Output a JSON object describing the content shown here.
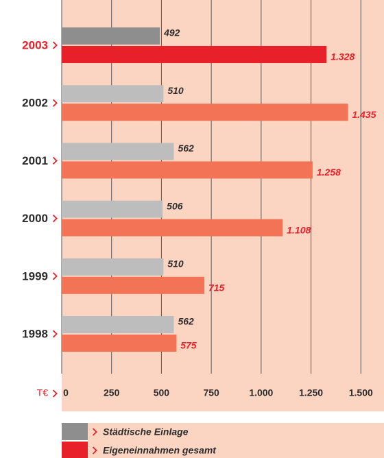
{
  "chart_data": {
    "type": "bar",
    "orientation": "horizontal",
    "categories": [
      "2003",
      "2002",
      "2001",
      "2000",
      "1999",
      "1998"
    ],
    "category_colors": [
      "#e8202a",
      "#2b2b2b",
      "#2b2b2b",
      "#2b2b2b",
      "#2b2b2b",
      "#2b2b2b"
    ],
    "series": [
      {
        "name": "Städtische Einlage",
        "color": "#8e8e8e",
        "label_color": "#2b2b2b",
        "colors": [
          "#8e8e8e",
          "#bdbdbd",
          "#bdbdbd",
          "#bdbdbd",
          "#bdbdbd",
          "#bdbdbd"
        ],
        "values": [
          492,
          510,
          562,
          506,
          510,
          562
        ]
      },
      {
        "name": "Eigeneinnahmen gesamt",
        "color": "#e8202a",
        "label_color": "#e8202a",
        "colors": [
          "#e8202a",
          "#f27355",
          "#f27355",
          "#f27355",
          "#f27355",
          "#f27355"
        ],
        "values": [
          1328,
          1435,
          1258,
          1108,
          715,
          575
        ],
        "value_labels": [
          "1.328",
          "1.435",
          "1.258",
          "1.108",
          "715",
          "575"
        ]
      }
    ],
    "x_label": "T€",
    "xlim": [
      0,
      1616
    ],
    "xticks": [
      0,
      250,
      500,
      750,
      {
        "value": 1000,
        "label": "1.000"
      },
      {
        "value": 1250,
        "label": "1.250"
      },
      {
        "value": 1500,
        "label": "1.500"
      }
    ],
    "grid": true
  }
}
